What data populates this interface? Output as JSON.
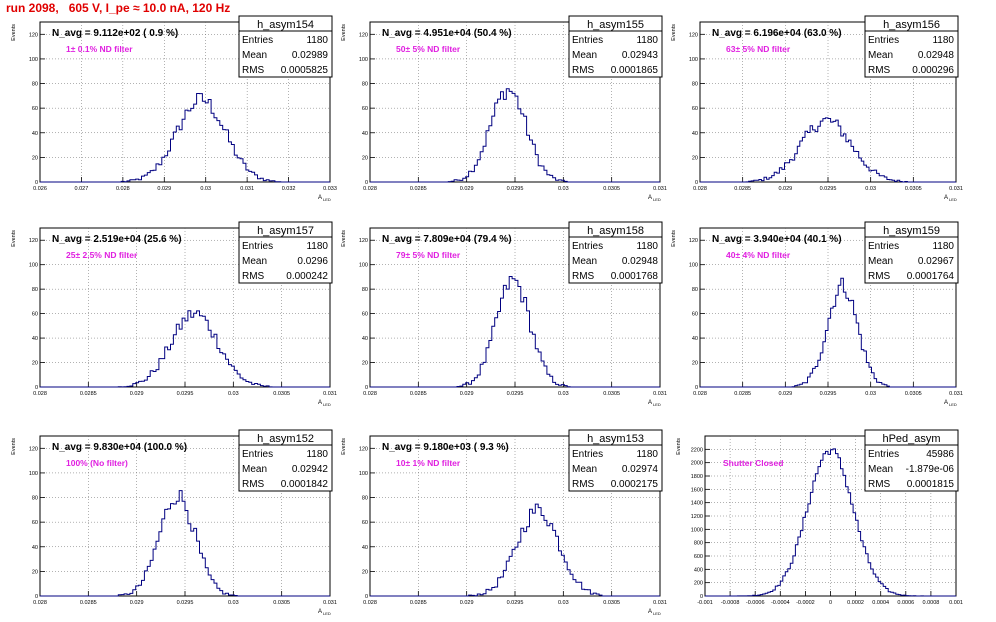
{
  "page_title": "run 2098,   605 V, I_pe ≈ 10.0 nA, 120 Hz",
  "chart_data": [
    {
      "type": "histogram",
      "name": "h_asym154",
      "ylabel": "Events",
      "xlabel": "A",
      "xlabel_sub": "LED",
      "xlim": [
        0.026,
        0.033
      ],
      "ylim": [
        0,
        130
      ],
      "xticks": [
        "0.026",
        "0.027",
        "0.028",
        "0.029",
        "0.03",
        "0.031",
        "0.032",
        "0.033"
      ],
      "yticks": [
        "0",
        "20",
        "40",
        "60",
        "80",
        "100",
        "120"
      ],
      "yticks_vals": [
        0,
        20,
        40,
        60,
        80,
        100,
        120
      ],
      "xticks_vals": [
        0.026,
        0.027,
        0.028,
        0.029,
        0.03,
        0.031,
        0.032,
        0.033
      ],
      "nbins": 100,
      "annotation": "N_avg = 9.112e+02 ( 0.9 %)",
      "filter_label": "1± 0.1% ND filter",
      "stats": {
        "entries": "1180",
        "mean": "0.02989",
        "rms": "0.0005825"
      },
      "mu": 0.02989,
      "sigma": 0.0005825,
      "peak": 67
    },
    {
      "type": "histogram",
      "name": "h_asym155",
      "ylabel": "Events",
      "xlabel": "A",
      "xlabel_sub": "LED",
      "xlim": [
        0.028,
        0.031
      ],
      "ylim": [
        0,
        130
      ],
      "xticks": [
        "0.028",
        "0.0285",
        "0.029",
        "0.0295",
        "0.03",
        "0.0305",
        "0.031"
      ],
      "xticks_vals": [
        0.028,
        0.0285,
        0.029,
        0.0295,
        0.03,
        0.0305,
        0.031
      ],
      "yticks": [
        "0",
        "20",
        "40",
        "60",
        "80",
        "100",
        "120"
      ],
      "yticks_vals": [
        0,
        20,
        40,
        60,
        80,
        100,
        120
      ],
      "nbins": 100,
      "annotation": "N_avg = 4.951e+04 (50.4 %)",
      "filter_label": "50± 5% ND filter",
      "stats": {
        "entries": "1180",
        "mean": "0.02943",
        "rms": "0.0001865"
      },
      "mu": 0.02943,
      "sigma": 0.0001865,
      "peak": 75
    },
    {
      "type": "histogram",
      "name": "h_asym156",
      "ylabel": "Events",
      "xlabel": "A",
      "xlabel_sub": "LED",
      "xlim": [
        0.028,
        0.031
      ],
      "ylim": [
        0,
        130
      ],
      "xticks": [
        "0.028",
        "0.0285",
        "0.029",
        "0.0295",
        "0.03",
        "0.0305",
        "0.031"
      ],
      "xticks_vals": [
        0.028,
        0.0285,
        0.029,
        0.0295,
        0.03,
        0.0305,
        0.031
      ],
      "yticks": [
        "0",
        "20",
        "40",
        "60",
        "80",
        "100",
        "120"
      ],
      "yticks_vals": [
        0,
        20,
        40,
        60,
        80,
        100,
        120
      ],
      "nbins": 100,
      "annotation": "N_avg = 6.196e+04 (63.0 %)",
      "filter_label": "63± 5% ND filter",
      "stats": {
        "entries": "1180",
        "mean": "0.02948",
        "rms": "0.000296"
      },
      "mu": 0.02948,
      "sigma": 0.000296,
      "peak": 50
    },
    {
      "type": "histogram",
      "name": "h_asym157",
      "ylabel": "Events",
      "xlabel": "A",
      "xlabel_sub": "LED",
      "xlim": [
        0.028,
        0.031
      ],
      "ylim": [
        0,
        130
      ],
      "xticks": [
        "0.028",
        "0.0285",
        "0.029",
        "0.0295",
        "0.03",
        "0.0305",
        "0.031"
      ],
      "xticks_vals": [
        0.028,
        0.0285,
        0.029,
        0.0295,
        0.03,
        0.0305,
        0.031
      ],
      "yticks": [
        "0",
        "20",
        "40",
        "60",
        "80",
        "100",
        "120"
      ],
      "yticks_vals": [
        0,
        20,
        40,
        60,
        80,
        100,
        120
      ],
      "nbins": 100,
      "annotation": "N_avg = 2.519e+04 (25.6 %)",
      "filter_label": "25± 2.5% ND filter",
      "stats": {
        "entries": "1180",
        "mean": "0.0296",
        "rms": "0.000242"
      },
      "mu": 0.0296,
      "sigma": 0.000242,
      "peak": 60
    },
    {
      "type": "histogram",
      "name": "h_asym158",
      "ylabel": "Events",
      "xlabel": "A",
      "xlabel_sub": "LED",
      "xlim": [
        0.028,
        0.031
      ],
      "ylim": [
        0,
        130
      ],
      "xticks": [
        "0.028",
        "0.0285",
        "0.029",
        "0.0295",
        "0.03",
        "0.0305",
        "0.031"
      ],
      "xticks_vals": [
        0.028,
        0.0285,
        0.029,
        0.0295,
        0.03,
        0.0305,
        0.031
      ],
      "yticks": [
        "0",
        "20",
        "40",
        "60",
        "80",
        "100",
        "120"
      ],
      "yticks_vals": [
        0,
        20,
        40,
        60,
        80,
        100,
        120
      ],
      "nbins": 100,
      "annotation": "N_avg = 7.809e+04 (79.4 %)",
      "filter_label": "79± 5% ND filter",
      "stats": {
        "entries": "1180",
        "mean": "0.02948",
        "rms": "0.0001768"
      },
      "mu": 0.02948,
      "sigma": 0.0001768,
      "peak": 87
    },
    {
      "type": "histogram",
      "name": "h_asym159",
      "ylabel": "Events",
      "xlabel": "A",
      "xlabel_sub": "LED",
      "xlim": [
        0.028,
        0.031
      ],
      "ylim": [
        0,
        130
      ],
      "xticks": [
        "0.028",
        "0.0285",
        "0.029",
        "0.0295",
        "0.03",
        "0.0305",
        "0.031"
      ],
      "xticks_vals": [
        0.028,
        0.0285,
        0.029,
        0.0295,
        0.03,
        0.0305,
        0.031
      ],
      "yticks": [
        "0",
        "20",
        "40",
        "60",
        "80",
        "100",
        "120"
      ],
      "yticks_vals": [
        0,
        20,
        40,
        60,
        80,
        100,
        120
      ],
      "nbins": 100,
      "annotation": "N_avg = 3.940e+04 (40.1 %)",
      "filter_label": "40± 4% ND filter",
      "stats": {
        "entries": "1180",
        "mean": "0.02967",
        "rms": "0.0001764"
      },
      "mu": 0.02967,
      "sigma": 0.0001764,
      "peak": 83
    },
    {
      "type": "histogram",
      "name": "h_asym152",
      "ylabel": "Events",
      "xlabel": "A",
      "xlabel_sub": "LED",
      "xlim": [
        0.028,
        0.031
      ],
      "ylim": [
        0,
        130
      ],
      "xticks": [
        "0.028",
        "0.0285",
        "0.029",
        "0.0295",
        "0.03",
        "0.0305",
        "0.031"
      ],
      "xticks_vals": [
        0.028,
        0.0285,
        0.029,
        0.0295,
        0.03,
        0.0305,
        0.031
      ],
      "yticks": [
        "0",
        "20",
        "40",
        "60",
        "80",
        "100",
        "120"
      ],
      "yticks_vals": [
        0,
        20,
        40,
        60,
        80,
        100,
        120
      ],
      "nbins": 100,
      "annotation": "N_avg = 9.830e+04 (100.0 %)",
      "filter_label": "100% (No filter)",
      "stats": {
        "entries": "1180",
        "mean": "0.02942",
        "rms": "0.0001842"
      },
      "mu": 0.02942,
      "sigma": 0.0001842,
      "peak": 82
    },
    {
      "type": "histogram",
      "name": "h_asym153",
      "ylabel": "Events",
      "xlabel": "A",
      "xlabel_sub": "LED",
      "xlim": [
        0.028,
        0.031
      ],
      "ylim": [
        0,
        130
      ],
      "xticks": [
        "0.028",
        "0.0285",
        "0.029",
        "0.0295",
        "0.03",
        "0.0305",
        "0.031"
      ],
      "xticks_vals": [
        0.028,
        0.0285,
        0.029,
        0.0295,
        0.03,
        0.0305,
        0.031
      ],
      "yticks": [
        "0",
        "20",
        "40",
        "60",
        "80",
        "100",
        "120"
      ],
      "yticks_vals": [
        0,
        20,
        40,
        60,
        80,
        100,
        120
      ],
      "nbins": 100,
      "annotation": "N_avg = 9.180e+03 ( 9.3 %)",
      "filter_label": "10± 1% ND filter",
      "stats": {
        "entries": "1180",
        "mean": "0.02974",
        "rms": "0.0002175"
      },
      "mu": 0.02974,
      "sigma": 0.0002175,
      "peak": 70
    },
    {
      "type": "histogram",
      "name": "hPed_asym",
      "ylabel": "Events",
      "xlabel": "",
      "xlabel_sub": "",
      "xlim": [
        -0.001,
        0.001
      ],
      "ylim": [
        0,
        2400
      ],
      "xticks": [
        "-0.001",
        "-0.0008",
        "-0.0006",
        "-0.0004",
        "-0.0002",
        "0",
        "0.0002",
        "0.0004",
        "0.0006",
        "0.0008",
        "0.001"
      ],
      "xticks_vals": [
        -0.001,
        -0.0008,
        -0.0006,
        -0.0004,
        -0.0002,
        0,
        0.0002,
        0.0004,
        0.0006,
        0.0008,
        0.001
      ],
      "yticks": [
        "0",
        "200",
        "400",
        "600",
        "800",
        "1000",
        "1200",
        "1400",
        "1600",
        "1800",
        "2000",
        "2200"
      ],
      "yticks_vals": [
        0,
        200,
        400,
        600,
        800,
        1000,
        1200,
        1400,
        1600,
        1800,
        2000,
        2200
      ],
      "nbins": 100,
      "annotation": "",
      "filter_label": "Shutter Closed",
      "stats": {
        "entries": "45986",
        "mean": "-1.879e-06",
        "rms": "0.0001815"
      },
      "mu": -1.9e-06,
      "sigma": 0.0001815,
      "peak": 2190
    }
  ],
  "stat_labels": {
    "entries": "Entries",
    "mean": "Mean",
    "rms": "RMS"
  }
}
